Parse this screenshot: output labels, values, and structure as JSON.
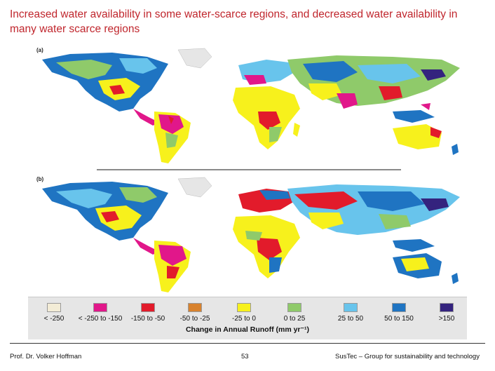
{
  "slide": {
    "title": "Increased water availability in some water-scarce regions, and decreased water availability in many water scarce regions"
  },
  "figure": {
    "panels": [
      {
        "label": "(a)"
      },
      {
        "label": "(b)"
      }
    ],
    "legend": {
      "title": "Change in Annual Runoff (mm yr⁻¹)",
      "items": [
        {
          "label": "< -250",
          "color": "#f3ecd6"
        },
        {
          "label": "< -250 to -150",
          "color": "#e1178a"
        },
        {
          "label": "-150 to -50",
          "color": "#e21b2b"
        },
        {
          "label": "-50 to -25",
          "color": "#d8822e"
        },
        {
          "label": "-25 to 0",
          "color": "#f7f11c"
        },
        {
          "label": "0 to 25",
          "color": "#8fca6a"
        },
        {
          "label": "25 to 50",
          "color": "#68c4ec"
        },
        {
          "label": "50 to 150",
          "color": "#1f74c2"
        },
        {
          "label": ">150",
          "color": "#34237e"
        }
      ]
    },
    "colors": {
      "ocean": "#ffffff",
      "land_neutral": "#8fca6a",
      "divider": "#8a8a8a"
    }
  },
  "footer": {
    "author": "Prof. Dr. Volker Hoffman",
    "page_number": "53",
    "group": "SusTec – Group for sustainability and technology"
  }
}
